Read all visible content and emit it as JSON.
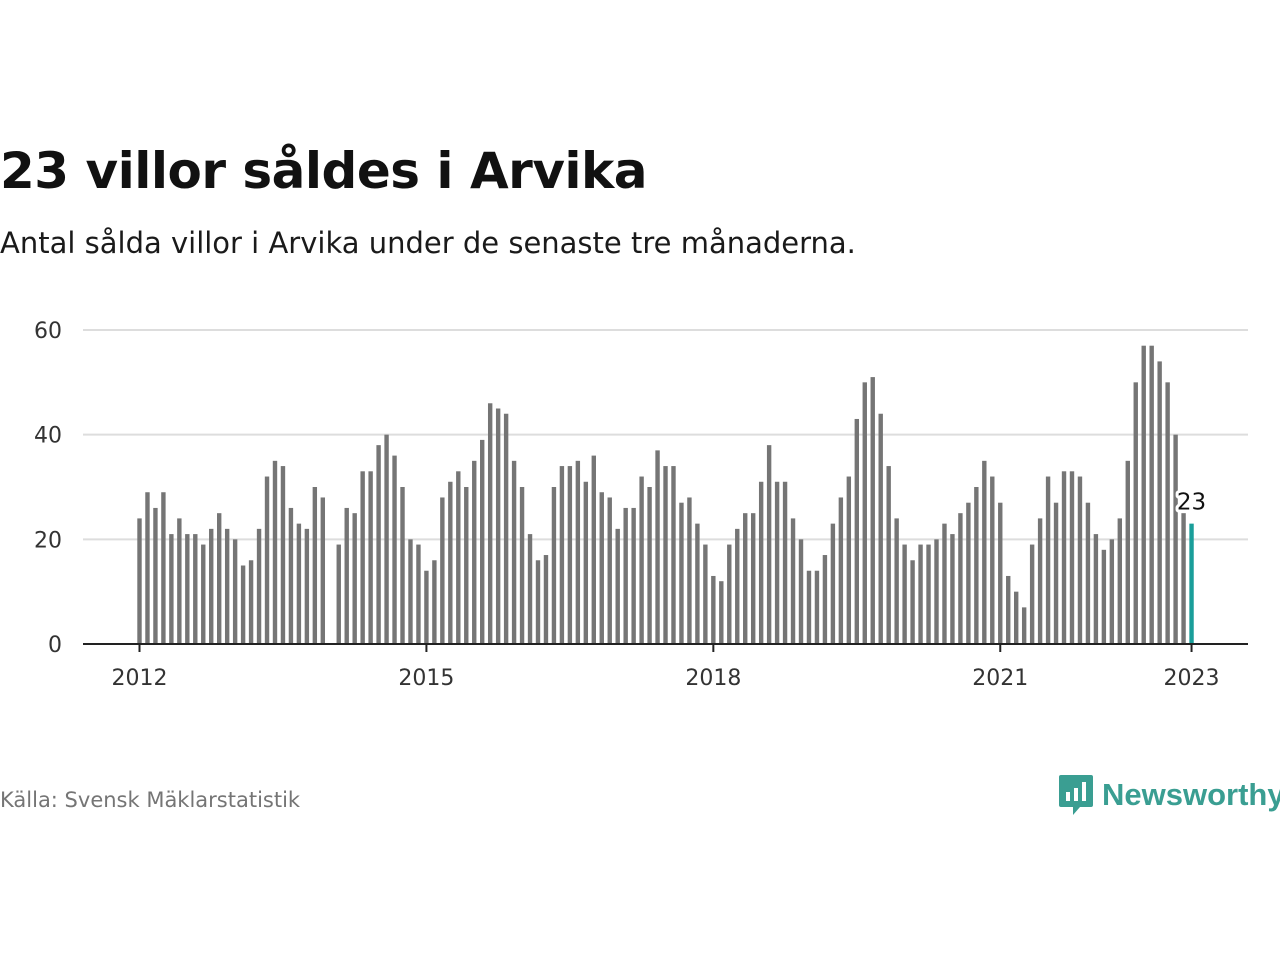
{
  "title": "23 villor såldes i Arvika",
  "subtitle": "Antal sålda villor i Arvika under de senaste tre månaderna.",
  "source": "Källa: Svensk Mäklarstatistik",
  "brand": {
    "name": "Newsworthy",
    "icon": "newsworthy-logo-icon",
    "color": "#3a9e92"
  },
  "colors": {
    "bar": "#757575",
    "highlight": "#1a9e9a",
    "grid": "#dddddd",
    "axis": "#222222"
  },
  "chart_data": {
    "type": "bar",
    "x_start": "2012-01",
    "x_interval": "month",
    "x_ticks": [
      "2012",
      "2015",
      "2018",
      "2021",
      "2023"
    ],
    "y_ticks": [
      "0",
      "20",
      "40",
      "60"
    ],
    "ylim": [
      0,
      60
    ],
    "values": [
      24,
      29,
      26,
      29,
      21,
      24,
      21,
      21,
      19,
      22,
      25,
      22,
      20,
      15,
      16,
      22,
      32,
      35,
      34,
      26,
      23,
      22,
      30,
      28,
      null,
      19,
      26,
      25,
      33,
      33,
      38,
      40,
      36,
      30,
      20,
      19,
      14,
      16,
      28,
      31,
      33,
      30,
      35,
      39,
      46,
      45,
      44,
      35,
      30,
      21,
      16,
      17,
      30,
      34,
      34,
      35,
      31,
      36,
      29,
      28,
      22,
      26,
      26,
      32,
      30,
      37,
      34,
      34,
      27,
      28,
      23,
      19,
      13,
      12,
      19,
      22,
      25,
      25,
      31,
      38,
      31,
      31,
      24,
      20,
      14,
      14,
      17,
      23,
      28,
      32,
      43,
      50,
      51,
      44,
      34,
      24,
      19,
      16,
      19,
      19,
      20,
      23,
      21,
      25,
      27,
      30,
      35,
      32,
      27,
      13,
      10,
      7,
      19,
      24,
      32,
      27,
      33,
      33,
      32,
      27,
      21,
      18,
      20,
      24,
      35,
      50,
      57,
      57,
      54,
      50,
      40,
      25,
      23
    ],
    "highlight_label": "23",
    "grid": true
  }
}
